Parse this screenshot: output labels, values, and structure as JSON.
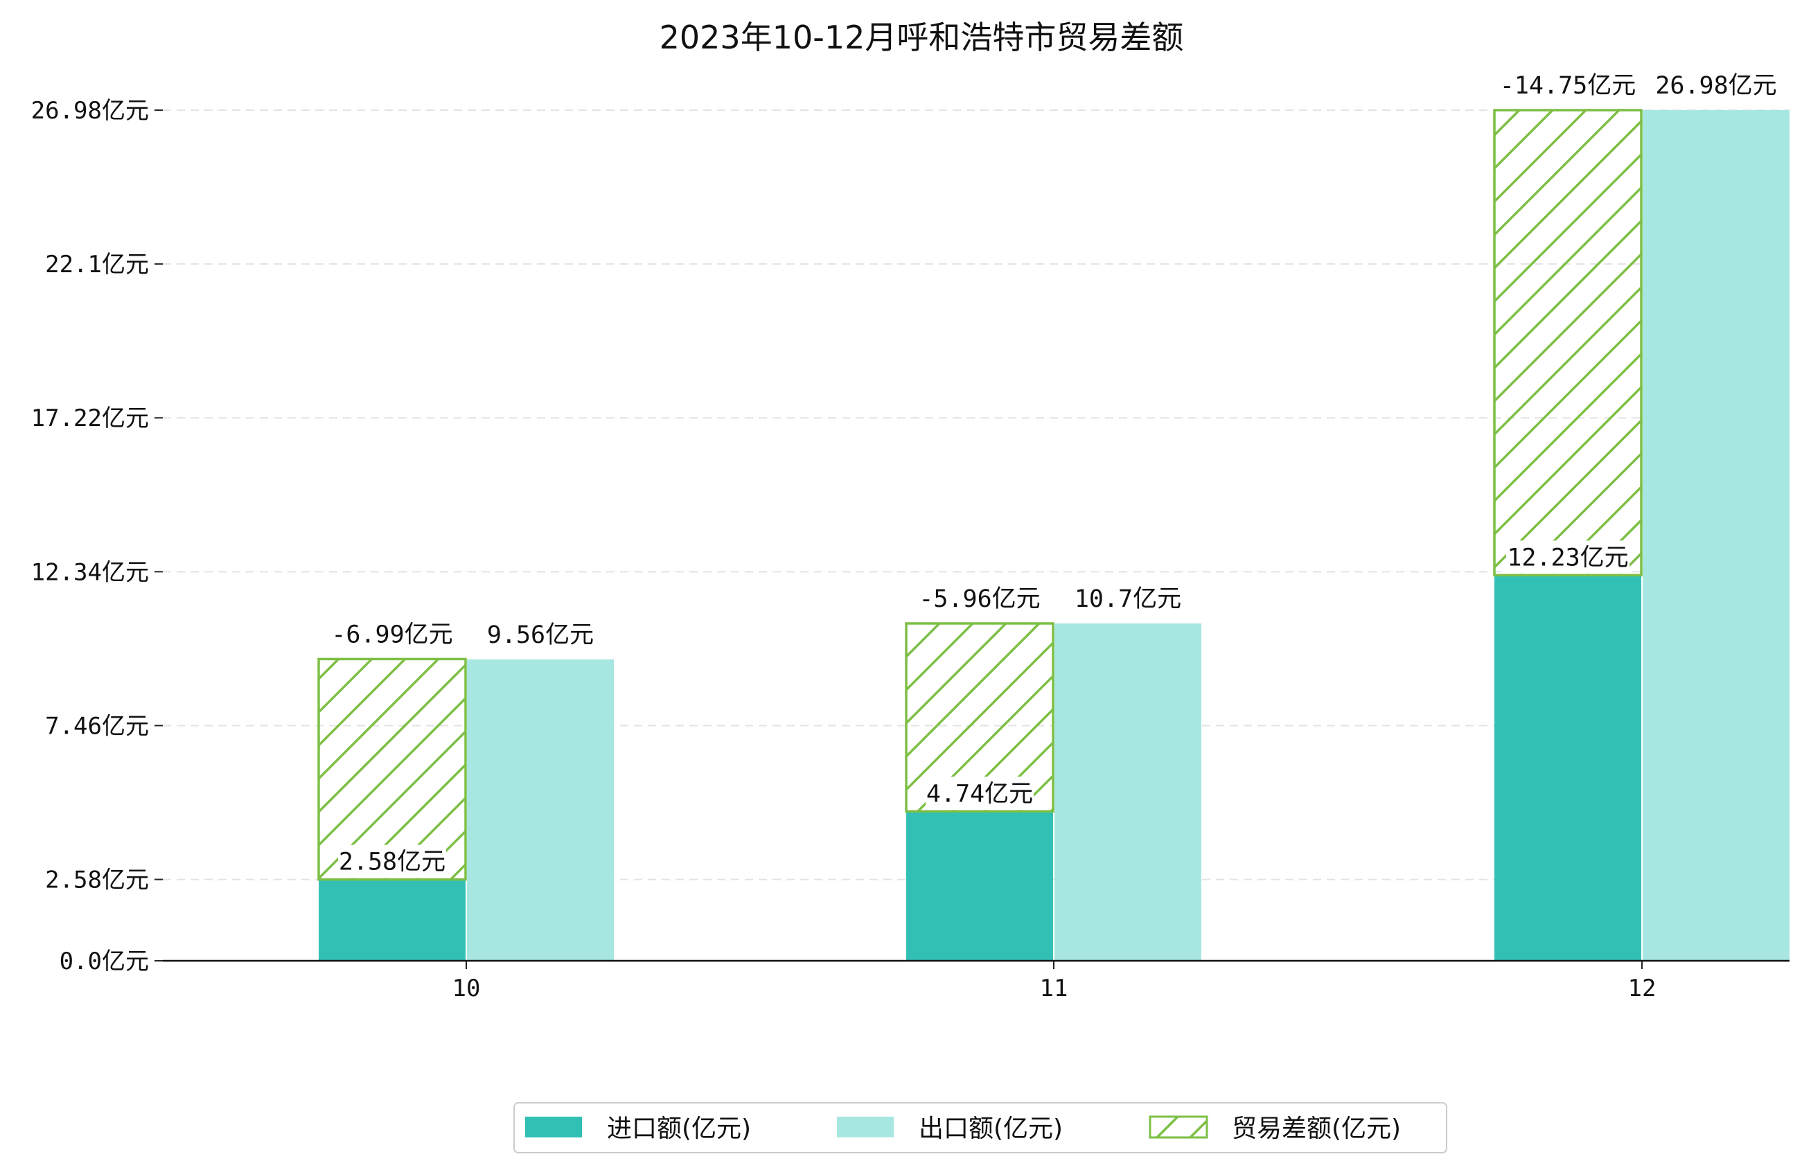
{
  "chart_data": {
    "type": "bar",
    "title": "2023年10-12月呼和浩特市贸易差额",
    "xlabel": "",
    "ylabel": "",
    "categories": [
      "10",
      "11",
      "12"
    ],
    "y_ticks": [
      "0.0亿元",
      "2.58亿元",
      "7.46亿元",
      "12.34亿元",
      "17.22亿元",
      "22.1亿元",
      "26.98亿元"
    ],
    "y_tick_values": [
      0.0,
      2.58,
      7.46,
      12.34,
      17.22,
      22.1,
      26.98
    ],
    "ylim": [
      0,
      27.5
    ],
    "grid": true,
    "legend_position": "bottom-center",
    "series": [
      {
        "name": "进口额(亿元)",
        "values": [
          2.58,
          4.74,
          12.23
        ],
        "labels": [
          "2.58亿元",
          "4.74亿元",
          "12.23亿元"
        ],
        "color": "#33C0B4"
      },
      {
        "name": "出口额(亿元)",
        "values": [
          9.56,
          10.7,
          26.98
        ],
        "labels": [
          "9.56亿元",
          "10.7亿元",
          "26.98亿元"
        ],
        "color": "#A8E6E1"
      },
      {
        "name": "贸易差额(亿元)",
        "values": [
          -6.99,
          -5.96,
          -14.75
        ],
        "labels": [
          "-6.99亿元",
          "-5.96亿元",
          "-14.75亿元"
        ],
        "color": "#7DBF45",
        "pattern": "hatch"
      }
    ]
  }
}
